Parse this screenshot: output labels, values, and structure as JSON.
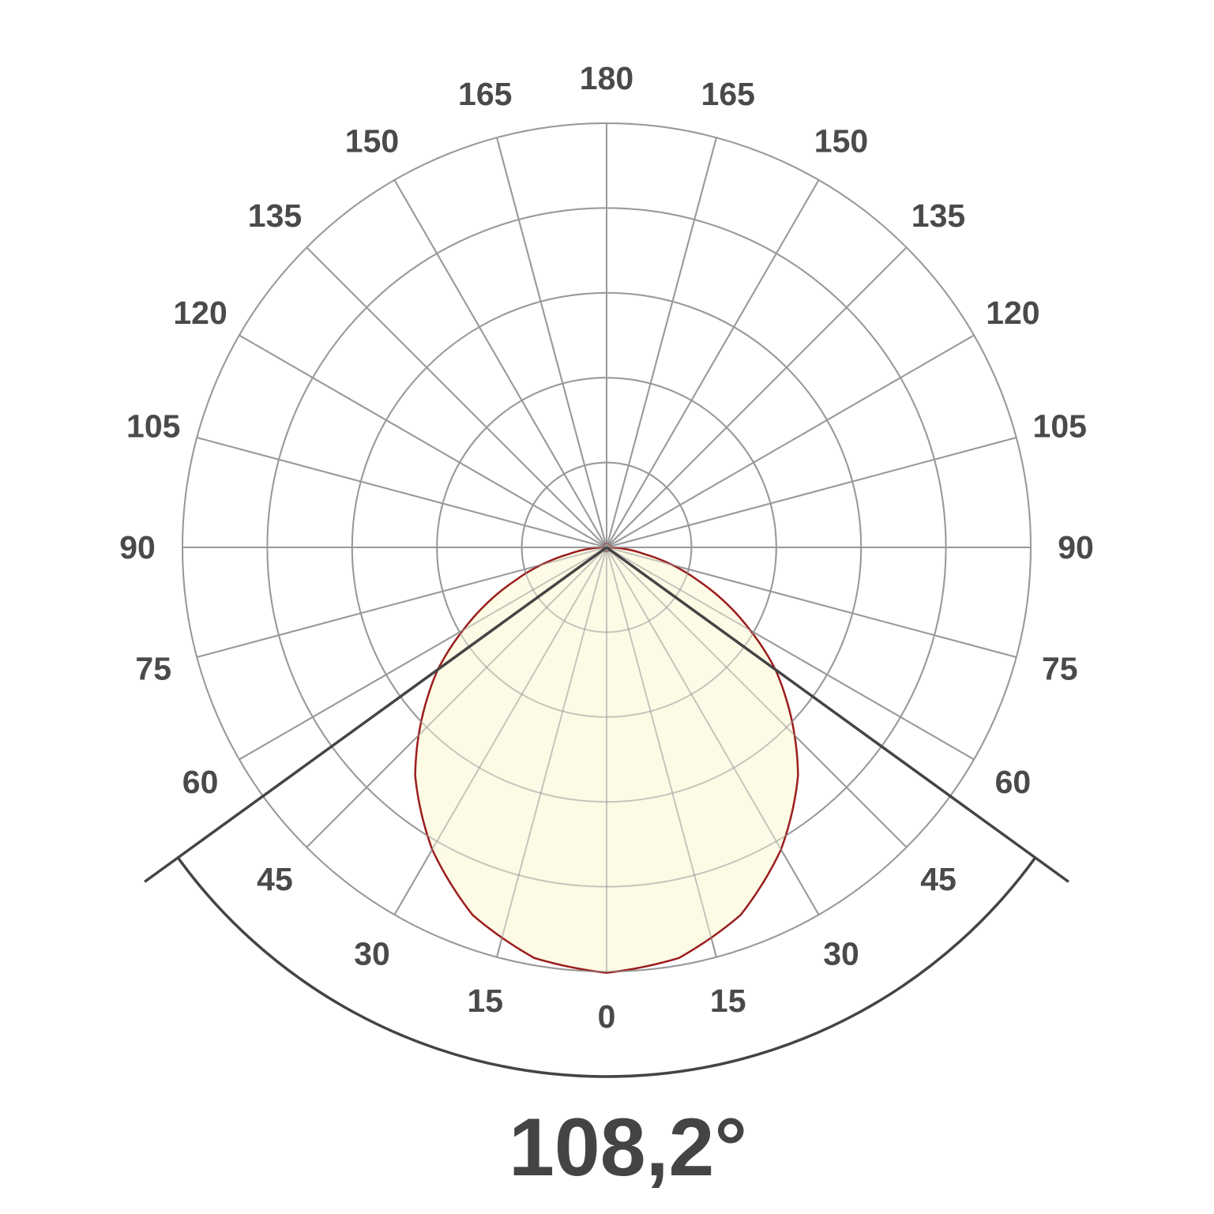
{
  "chart_data": {
    "type": "polar",
    "angle_ticks_left": [
      "180",
      "165",
      "150",
      "135",
      "120",
      "105",
      "90",
      "75",
      "60",
      "45",
      "30",
      "15",
      "0"
    ],
    "angle_ticks_right": [
      "165",
      "150",
      "135",
      "120",
      "105",
      "90",
      "75",
      "60",
      "45",
      "30",
      "15"
    ],
    "angle_tick_values": [
      0,
      15,
      30,
      45,
      60,
      75,
      90,
      105,
      120,
      135,
      150,
      165,
      180
    ],
    "radial_rings": 5,
    "grid": true,
    "series": [
      {
        "angles_deg": [
          0,
          10,
          20,
          30,
          40,
          50,
          54.1,
          60,
          70,
          80,
          90
        ],
        "relative_intensity": [
          1.0,
          0.98,
          0.92,
          0.82,
          0.7,
          0.55,
          0.49,
          0.39,
          0.23,
          0.09,
          0.0
        ]
      }
    ],
    "beam_angle_deg": 108.2,
    "beam_angle_label": "108,2°",
    "colors": {
      "grid": "#999999",
      "curve": "#9b1c1c",
      "fill": "#fdfbe6",
      "beam": "#444444",
      "text": "#4a4a4a"
    }
  }
}
